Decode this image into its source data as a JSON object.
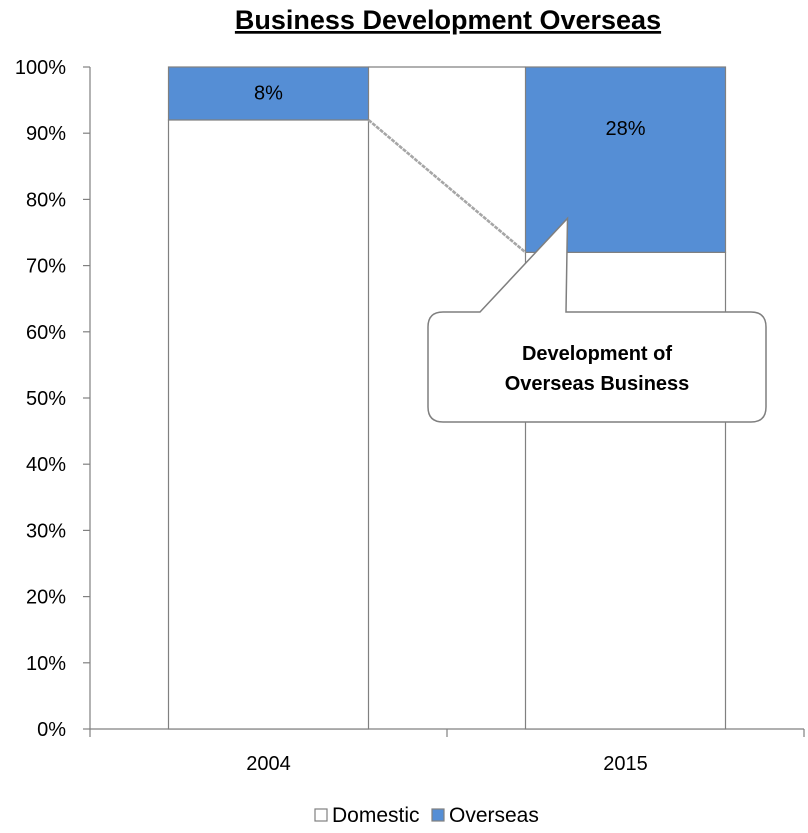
{
  "chart_data": {
    "type": "bar",
    "title": "Business Development Overseas",
    "categories": [
      "2004",
      "2015"
    ],
    "series": [
      {
        "name": "Domestic",
        "values": [
          92,
          72
        ],
        "color": "#ffffff"
      },
      {
        "name": "Overseas",
        "values": [
          8,
          28
        ],
        "color": "#558ed5"
      }
    ],
    "data_labels": {
      "Overseas": [
        "8%",
        "28%"
      ]
    },
    "xlabel": "",
    "ylabel": "",
    "ylim": [
      0,
      100
    ],
    "y_ticks": [
      "0%",
      "10%",
      "20%",
      "30%",
      "40%",
      "50%",
      "60%",
      "70%",
      "80%",
      "90%",
      "100%"
    ],
    "stacked": true,
    "stacked_percent": true,
    "grid": false,
    "legend_position": "bottom",
    "legend": [
      "Domestic",
      "Overseas"
    ],
    "annotation": {
      "lines": [
        "Development of",
        "Overseas Business"
      ]
    },
    "colors": {
      "overseas": "#558ed5",
      "domestic": "#ffffff",
      "outline": "#808080",
      "connector": "#a6a6a6"
    }
  }
}
